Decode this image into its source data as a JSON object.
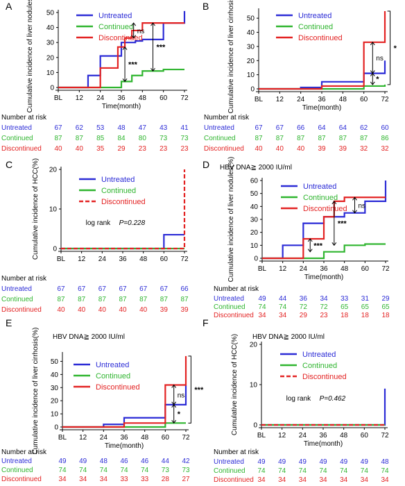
{
  "colors": {
    "untreated": "#2b2bd6",
    "continued": "#2fb52f",
    "discontinued": "#e32222"
  },
  "chart_data": [
    {
      "panel": "A",
      "type": "line",
      "subtitle": "",
      "ylabel": "Cumulative incidence of liver nodules(%)",
      "xlabel": "Time(month)",
      "ylim": [
        0,
        50
      ],
      "yticks": [
        0,
        10,
        20,
        30,
        40,
        50
      ],
      "x_ticks": [
        "BL",
        "12",
        "24",
        "36",
        "48",
        "60",
        "72"
      ],
      "legend": [
        "Untreated",
        "Continued",
        "Discontinued"
      ],
      "series": [
        {
          "name": "Untreated",
          "key": "untreated",
          "dashed": false,
          "x": [
            0,
            12,
            17,
            24,
            36,
            39,
            44,
            48,
            60,
            72,
            72
          ],
          "y": [
            0,
            0,
            8,
            21,
            30,
            30,
            31,
            32,
            43,
            43,
            51
          ]
        },
        {
          "name": "Continued",
          "key": "continued",
          "dashed": false,
          "x": [
            0,
            12,
            24,
            36,
            39,
            42,
            48,
            60,
            72
          ],
          "y": [
            0,
            0,
            0,
            4,
            4,
            8,
            11,
            12,
            12
          ]
        },
        {
          "name": "Discontinued",
          "key": "discontinued",
          "dashed": false,
          "x": [
            0,
            12,
            24,
            34,
            38,
            42,
            48,
            60,
            72
          ],
          "y": [
            0,
            0,
            13,
            27,
            33,
            38,
            43,
            43,
            43
          ]
        }
      ],
      "annotations": [
        {
          "text": "ns",
          "x": 43,
          "y1": 33,
          "y2": 43
        },
        {
          "text": "***",
          "x": 38,
          "y1": 4,
          "y2": 27
        },
        {
          "text": "***",
          "x": 54,
          "y1": 11,
          "y2": 43
        }
      ],
      "risk_table": {
        "title": "Number at risk",
        "rows": [
          {
            "label": "Untreated",
            "key": "untreated",
            "values": [
              "67",
              "62",
              "53",
              "48",
              "47",
              "43",
              "41"
            ]
          },
          {
            "label": "Continued",
            "key": "continued",
            "values": [
              "87",
              "87",
              "85",
              "84",
              "80",
              "73",
              "73"
            ]
          },
          {
            "label": "Discontinued",
            "key": "discontinued",
            "values": [
              "40",
              "40",
              "35",
              "29",
              "23",
              "23",
              "23"
            ]
          }
        ]
      }
    },
    {
      "panel": "B",
      "type": "line",
      "subtitle": "",
      "ylabel": "Cumulative incidence of liver cirrhosis(%)",
      "xlabel": "Time(month)",
      "ylim": [
        0,
        55
      ],
      "yticks": [
        0,
        10,
        20,
        30,
        40,
        50
      ],
      "x_ticks": [
        "BL",
        "12",
        "24",
        "36",
        "48",
        "60",
        "72"
      ],
      "legend": [
        "Untreated",
        "Continued",
        "Discontinued"
      ],
      "series": [
        {
          "name": "Untreated",
          "key": "untreated",
          "dashed": false,
          "x": [
            0,
            24,
            36,
            60,
            70,
            72
          ],
          "y": [
            0,
            1,
            5,
            11,
            11,
            20
          ]
        },
        {
          "name": "Continued",
          "key": "continued",
          "dashed": false,
          "x": [
            0,
            36,
            60,
            72
          ],
          "y": [
            0,
            0,
            2,
            3
          ]
        },
        {
          "name": "Discontinued",
          "key": "discontinued",
          "dashed": false,
          "x": [
            0,
            36,
            60,
            60,
            71,
            72
          ],
          "y": [
            0,
            2,
            2,
            33,
            33,
            55
          ]
        }
      ],
      "annotations": [
        {
          "text": "ns",
          "x": 65,
          "y1": 11,
          "y2": 33
        },
        {
          "text": "*",
          "x": 65,
          "y1": 3,
          "y2": 11
        },
        {
          "text": "*",
          "x": 75,
          "y1": 3,
          "y2": 55,
          "bracket": true
        }
      ],
      "risk_table": {
        "title": "Number at risk",
        "rows": [
          {
            "label": "Untreated",
            "key": "untreated",
            "values": [
              "67",
              "67",
              "66",
              "64",
              "64",
              "62",
              "60"
            ]
          },
          {
            "label": "Continued",
            "key": "continued",
            "values": [
              "87",
              "87",
              "87",
              "87",
              "87",
              "87",
              "86"
            ]
          },
          {
            "label": "Discontinued",
            "key": "discontinued",
            "values": [
              "40",
              "40",
              "40",
              "39",
              "39",
              "32",
              "32"
            ]
          }
        ]
      }
    },
    {
      "panel": "C",
      "type": "line",
      "subtitle": "",
      "ylabel": "Cumulative incidence of HCC(%)",
      "xlabel": "",
      "ylim": [
        0,
        20
      ],
      "yticks": [
        0,
        10,
        20
      ],
      "x_ticks": [
        "BL",
        "12",
        "24",
        "36",
        "48",
        "60",
        "72"
      ],
      "legend": [
        "Untreated",
        "Continued",
        "Discontinued"
      ],
      "logrank": "log rank",
      "pvalue": "P=0.228",
      "series": [
        {
          "name": "Untreated",
          "key": "untreated",
          "dashed": false,
          "x": [
            0,
            60,
            60,
            72
          ],
          "y": [
            0,
            0,
            3.5,
            3.5
          ]
        },
        {
          "name": "Continued",
          "key": "continued",
          "dashed": false,
          "x": [
            0,
            72
          ],
          "y": [
            0,
            0
          ]
        },
        {
          "name": "Discontinued",
          "key": "discontinued",
          "dashed": true,
          "x": [
            0,
            72,
            72
          ],
          "y": [
            0,
            0,
            20
          ]
        }
      ],
      "annotations": [],
      "risk_table": {
        "title": "Number at risk",
        "rows": [
          {
            "label": "Untreated",
            "key": "untreated",
            "values": [
              "67",
              "67",
              "67",
              "67",
              "67",
              "67",
              "66"
            ]
          },
          {
            "label": "Continued",
            "key": "continued",
            "values": [
              "87",
              "87",
              "87",
              "87",
              "87",
              "87",
              "87"
            ]
          },
          {
            "label": "Discontinued",
            "key": "discontinued",
            "values": [
              "40",
              "40",
              "40",
              "40",
              "40",
              "39",
              "39"
            ]
          }
        ]
      }
    },
    {
      "panel": "D",
      "type": "line",
      "subtitle": "HBV DNA≧ 2000 IU/ml",
      "ylabel": "Cumulative incidence of liver nodules(%)",
      "xlabel": "Time(month)",
      "ylim": [
        0,
        60
      ],
      "yticks": [
        0,
        10,
        20,
        30,
        40,
        50,
        60
      ],
      "x_ticks": [
        "BL",
        "12",
        "24",
        "36",
        "48",
        "60",
        "72"
      ],
      "legend": [
        "Untreated",
        "Continued",
        "Discontinued"
      ],
      "series": [
        {
          "name": "Untreated",
          "key": "untreated",
          "dashed": false,
          "x": [
            0,
            12,
            24,
            36,
            48,
            60,
            72,
            72
          ],
          "y": [
            0,
            10,
            27,
            32,
            35,
            44,
            44,
            60
          ]
        },
        {
          "name": "Continued",
          "key": "continued",
          "dashed": false,
          "x": [
            0,
            24,
            36,
            48,
            60,
            72
          ],
          "y": [
            0,
            0,
            5,
            10,
            11,
            11
          ]
        },
        {
          "name": "Discontinued",
          "key": "discontinued",
          "dashed": false,
          "x": [
            0,
            12,
            24,
            36,
            42,
            48,
            60,
            72
          ],
          "y": [
            0,
            0,
            15,
            32,
            44,
            47,
            47,
            47
          ]
        }
      ],
      "annotations": [
        {
          "text": "ns",
          "x": 54,
          "y1": 35,
          "y2": 47
        },
        {
          "text": "***",
          "x": 42,
          "y1": 10,
          "y2": 44
        },
        {
          "text": "***",
          "x": 28,
          "y1": 5,
          "y2": 15
        }
      ],
      "risk_table": {
        "title": "Number at risk",
        "rows": [
          {
            "label": "Untreated",
            "key": "untreated",
            "values": [
              "49",
              "44",
              "36",
              "34",
              "33",
              "31",
              "29"
            ]
          },
          {
            "label": "Continued",
            "key": "continued",
            "values": [
              "74",
              "74",
              "72",
              "72",
              "65",
              "65",
              "65"
            ]
          },
          {
            "label": "Discontinued",
            "key": "discontinued",
            "values": [
              "34",
              "34",
              "29",
              "23",
              "18",
              "18",
              "18"
            ]
          }
        ]
      }
    },
    {
      "panel": "E",
      "type": "line",
      "subtitle": "HBV DNA≧ 2000 IU/ml",
      "ylabel": "Cumulative incidence of liver cirrhosis(%)",
      "xlabel": "Time(month)",
      "ylim": [
        0,
        55
      ],
      "yticks": [
        0,
        10,
        20,
        30,
        40,
        50
      ],
      "x_ticks": [
        "BL",
        "12",
        "24",
        "36",
        "48",
        "60",
        "72"
      ],
      "legend": [
        "Untreated",
        "Continued",
        "Discontinued"
      ],
      "series": [
        {
          "name": "Untreated",
          "key": "untreated",
          "dashed": false,
          "x": [
            0,
            24,
            36,
            60,
            72
          ],
          "y": [
            0,
            2,
            7,
            17,
            32
          ]
        },
        {
          "name": "Continued",
          "key": "continued",
          "dashed": false,
          "x": [
            0,
            36,
            60,
            72
          ],
          "y": [
            0,
            0,
            3,
            3
          ]
        },
        {
          "name": "Discontinued",
          "key": "discontinued",
          "dashed": false,
          "x": [
            0,
            36,
            60,
            72,
            72
          ],
          "y": [
            0,
            3,
            32,
            32,
            54
          ]
        }
      ],
      "annotations": [
        {
          "text": "ns",
          "x": 65,
          "y1": 17,
          "y2": 32
        },
        {
          "text": "*",
          "x": 65,
          "y1": 3,
          "y2": 17
        },
        {
          "text": "***",
          "x": 75,
          "y1": 3,
          "y2": 54,
          "bracket": true
        }
      ],
      "risk_table": {
        "title": "Number at risk",
        "rows": [
          {
            "label": "Untreated",
            "key": "untreated",
            "values": [
              "49",
              "49",
              "48",
              "46",
              "46",
              "44",
              "42"
            ]
          },
          {
            "label": "Continued",
            "key": "continued",
            "values": [
              "74",
              "74",
              "74",
              "74",
              "74",
              "73",
              "73"
            ]
          },
          {
            "label": "Discontinued",
            "key": "discontinued",
            "values": [
              "34",
              "34",
              "34",
              "33",
              "33",
              "28",
              "27"
            ]
          }
        ]
      }
    },
    {
      "panel": "F",
      "type": "line",
      "subtitle": "HBV DNA≧ 2000 IU/ml",
      "ylabel": "Cumulative incidence of HCC(%)",
      "xlabel": "Time(month)",
      "ylim": [
        0,
        20
      ],
      "yticks": [
        0,
        10,
        20
      ],
      "x_ticks": [
        "BL",
        "12",
        "24",
        "36",
        "48",
        "60",
        "72"
      ],
      "legend": [
        "Untreated",
        "Continued",
        "Discontinued"
      ],
      "logrank": "log rank",
      "pvalue": "P=0.462",
      "series": [
        {
          "name": "Untreated",
          "key": "untreated",
          "dashed": false,
          "x": [
            0,
            72,
            72
          ],
          "y": [
            0,
            0,
            9
          ]
        },
        {
          "name": "Continued",
          "key": "continued",
          "dashed": false,
          "x": [
            0,
            72
          ],
          "y": [
            0,
            0
          ]
        },
        {
          "name": "Discontinued",
          "key": "discontinued",
          "dashed": true,
          "x": [
            0,
            72
          ],
          "y": [
            0,
            0
          ]
        }
      ],
      "annotations": [],
      "risk_table": {
        "title": "Number at risk",
        "rows": [
          {
            "label": "Untreated",
            "key": "untreated",
            "values": [
              "49",
              "49",
              "49",
              "49",
              "49",
              "49",
              "48"
            ]
          },
          {
            "label": "Continued",
            "key": "continued",
            "values": [
              "74",
              "74",
              "74",
              "74",
              "74",
              "74",
              "74"
            ]
          },
          {
            "label": "Discontinued",
            "key": "discontinued",
            "values": [
              "34",
              "34",
              "34",
              "34",
              "34",
              "34",
              "34"
            ]
          }
        ]
      }
    }
  ]
}
